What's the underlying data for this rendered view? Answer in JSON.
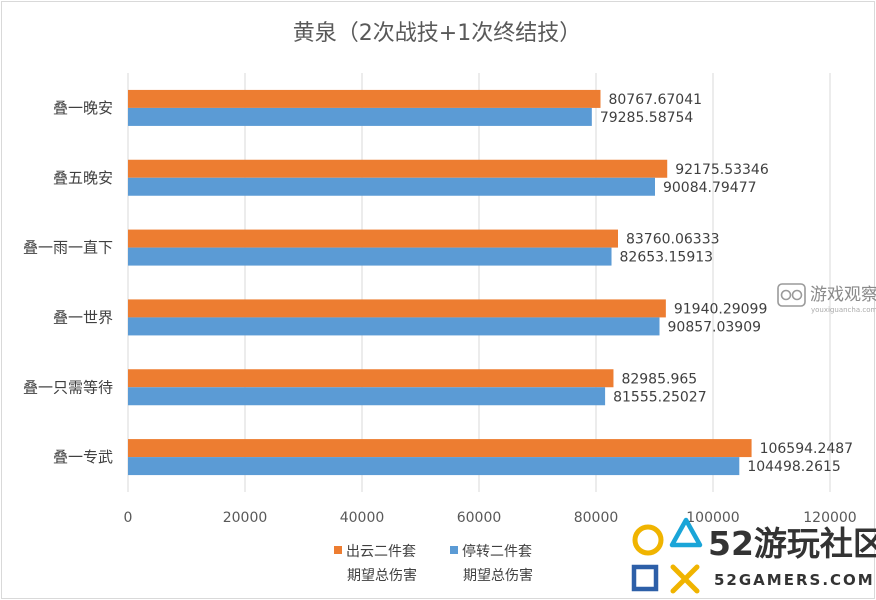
{
  "chart_data": {
    "type": "bar",
    "orientation": "horizontal",
    "title": "黄泉（2次战技+1次终结技）",
    "categories": [
      "叠一晚安",
      "叠五晚安",
      "叠一雨一直下",
      "叠一世界",
      "叠一只需等待",
      "叠一专武"
    ],
    "series": [
      {
        "name_line1": "出云二件套",
        "name_line2": "期望总伤害",
        "color": "#ed7d31",
        "values": [
          80767.67041,
          92175.53346,
          83760.06333,
          91940.29099,
          82985.965,
          106594.2487
        ],
        "labels": [
          "80767.67041",
          "92175.53346",
          "83760.06333",
          "91940.29099",
          "82985.965",
          "106594.2487"
        ]
      },
      {
        "name_line1": "停转二件套",
        "name_line2": "期望总伤害",
        "color": "#5b9bd5",
        "values": [
          79285.58754,
          90084.79477,
          82653.15913,
          90857.03909,
          81555.25027,
          104498.2615
        ],
        "labels": [
          "79285.58754",
          "90084.79477",
          "82653.15913",
          "90857.03909",
          "81555.25027",
          "104498.2615"
        ]
      }
    ],
    "xlim": [
      0,
      120000
    ],
    "xticks": [
      0,
      20000,
      40000,
      60000,
      80000,
      100000,
      120000
    ],
    "grid": true,
    "legend": "bottom-center"
  },
  "watermarks": {
    "youxiguancha": {
      "name": "游戏观察",
      "url": "youxiguancha.com"
    },
    "gamers52": {
      "name": "52游玩社区",
      "sub": "52GAMERS.COM"
    }
  }
}
